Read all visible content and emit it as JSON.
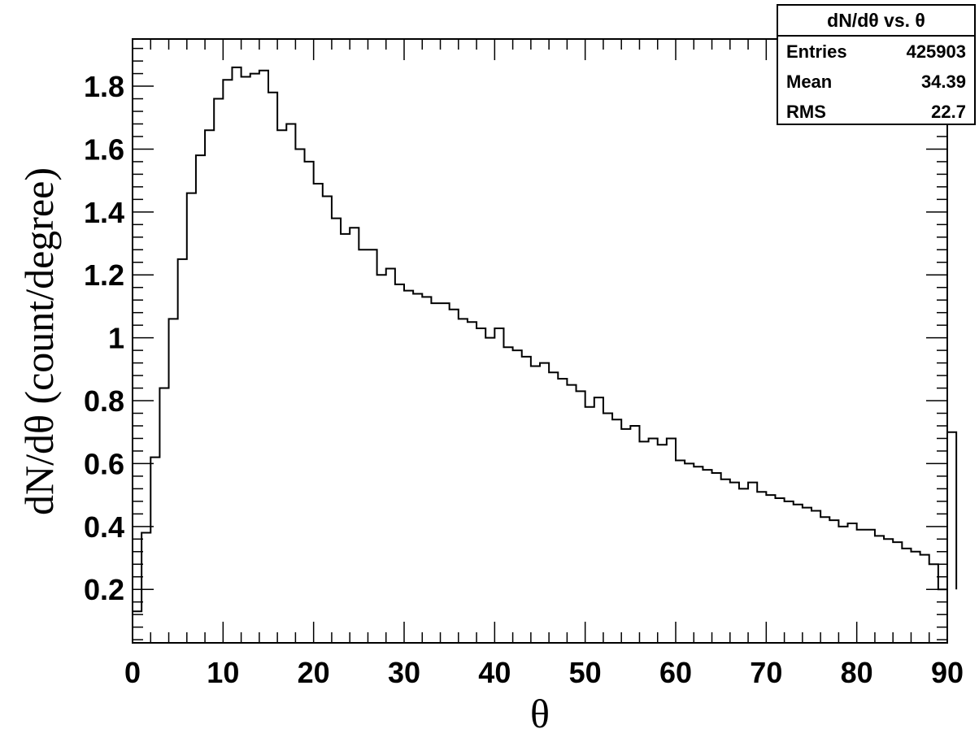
{
  "chart_data": {
    "type": "histogram",
    "title": "",
    "xlabel": "θ",
    "ylabel": "dN/dθ (count/degree)",
    "xlim": [
      0,
      90
    ],
    "ylim": [
      0.03,
      1.95
    ],
    "xticks": [
      0,
      10,
      20,
      30,
      40,
      50,
      60,
      70,
      80,
      90
    ],
    "yticks": [
      0.2,
      0.4,
      0.6,
      0.8,
      1,
      1.2,
      1.4,
      1.6,
      1.8
    ],
    "bin_width": 1,
    "x_start": 0,
    "values": [
      0.13,
      0.38,
      0.62,
      0.84,
      1.06,
      1.25,
      1.46,
      1.58,
      1.66,
      1.76,
      1.82,
      1.86,
      1.83,
      1.84,
      1.85,
      1.78,
      1.66,
      1.68,
      1.6,
      1.56,
      1.49,
      1.45,
      1.38,
      1.33,
      1.35,
      1.28,
      1.28,
      1.2,
      1.22,
      1.17,
      1.15,
      1.14,
      1.13,
      1.11,
      1.11,
      1.09,
      1.06,
      1.05,
      1.03,
      1.0,
      1.03,
      0.97,
      0.96,
      0.94,
      0.91,
      0.92,
      0.89,
      0.87,
      0.85,
      0.83,
      0.78,
      0.81,
      0.76,
      0.74,
      0.71,
      0.72,
      0.67,
      0.68,
      0.66,
      0.68,
      0.61,
      0.6,
      0.59,
      0.58,
      0.57,
      0.55,
      0.54,
      0.52,
      0.54,
      0.51,
      0.5,
      0.49,
      0.48,
      0.47,
      0.46,
      0.45,
      0.43,
      0.42,
      0.4,
      0.41,
      0.39,
      0.39,
      0.37,
      0.36,
      0.35,
      0.33,
      0.32,
      0.31,
      0.28,
      0.2,
      0.7
    ],
    "legend": "stats box top-right",
    "stats": {
      "title": "dN/dθ vs. θ",
      "rows": [
        {
          "label": "Entries",
          "value": "425903"
        },
        {
          "label": "Mean",
          "value": "34.39"
        },
        {
          "label": "RMS",
          "value": "22.7"
        }
      ]
    },
    "line_color": "#000000",
    "grid": false
  }
}
